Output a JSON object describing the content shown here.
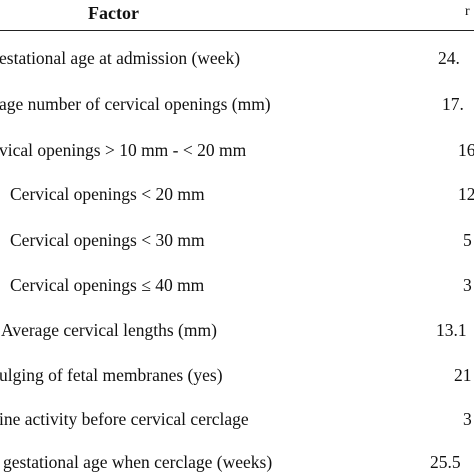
{
  "table": {
    "header": {
      "factor": "Factor",
      "value": "r"
    },
    "rows": [
      {
        "factor": "estational age at admission (week)",
        "value": "24."
      },
      {
        "factor": "age number of cervical openings (mm)",
        "value": "17."
      },
      {
        "factor": "vical openings > 10 mm - < 20 mm",
        "value": "16"
      },
      {
        "factor": "Cervical openings < 20 mm",
        "value": "12"
      },
      {
        "factor": "Cervical openings < 30 mm",
        "value": "5"
      },
      {
        "factor": "Cervical openings ≤ 40 mm",
        "value": "3"
      },
      {
        "factor": "Average cervical lengths (mm)",
        "value": "13.1"
      },
      {
        "factor": "ulging of fetal membranes (yes)",
        "value": "21"
      },
      {
        "factor": "ine activity before cervical cerclage",
        "value": "3"
      },
      {
        "factor": "gestational age when cerclage (weeks)",
        "value": "25.5"
      }
    ]
  }
}
